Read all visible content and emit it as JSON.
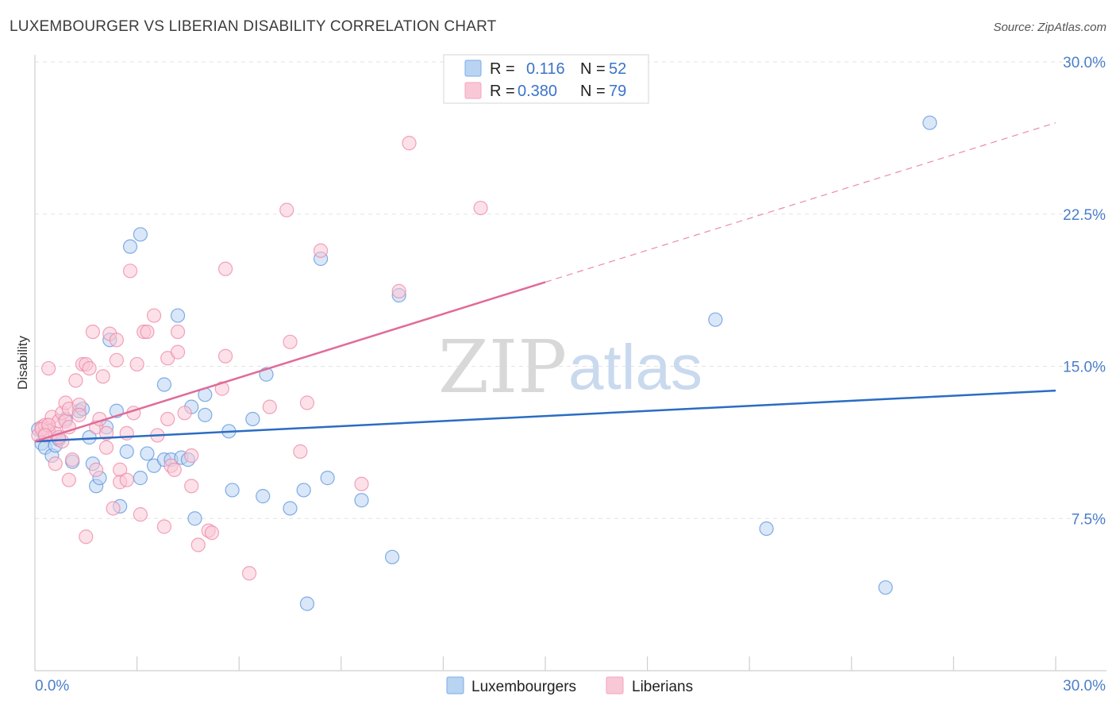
{
  "title": "LUXEMBOURGER VS LIBERIAN DISABILITY CORRELATION CHART",
  "source": "Source: ZipAtlas.com",
  "watermark": {
    "zip": "ZIP",
    "atlas": "atlas"
  },
  "legend": {
    "r_label": "R =",
    "n_label": "N =",
    "rows": [
      {
        "r": "0.116",
        "n": "52",
        "color": "#7aaee8"
      },
      {
        "r": "0.380",
        "n": "79",
        "color": "#f4a3bc"
      }
    ]
  },
  "chart_data": {
    "type": "scatter",
    "title": "LUXEMBOURGER VS LIBERIAN DISABILITY CORRELATION CHART",
    "xlabel": "",
    "ylabel": "Disability",
    "xlim": [
      0,
      30
    ],
    "ylim": [
      0,
      30
    ],
    "x_tick_labels": [
      {
        "value": 0,
        "label": "0.0%"
      },
      {
        "value": 30,
        "label": "30.0%"
      }
    ],
    "y_tick_labels": [
      {
        "value": 7.5,
        "label": "7.5%"
      },
      {
        "value": 15,
        "label": "15.0%"
      },
      {
        "value": 22.5,
        "label": "22.5%"
      },
      {
        "value": 30,
        "label": "30.0%"
      }
    ],
    "grid": true,
    "legend_position": "bottom",
    "series": [
      {
        "name": "Luxembourgers",
        "color": "#5b93dc",
        "fill": "#b9d3f2",
        "trend": {
          "x0": 0,
          "y0": 11.3,
          "x1": 30,
          "y1": 13.8,
          "solid_to": 30
        },
        "points": [
          [
            0.1,
            11.9
          ],
          [
            0.2,
            11.2
          ],
          [
            0.3,
            11.0
          ],
          [
            0.4,
            11.8
          ],
          [
            0.5,
            10.6
          ],
          [
            0.6,
            11.1
          ],
          [
            0.7,
            11.4
          ],
          [
            0.9,
            12.4
          ],
          [
            1.1,
            10.3
          ],
          [
            1.3,
            12.8
          ],
          [
            1.4,
            12.9
          ],
          [
            1.6,
            11.5
          ],
          [
            1.7,
            10.2
          ],
          [
            1.8,
            9.1
          ],
          [
            1.9,
            9.5
          ],
          [
            2.1,
            12.0
          ],
          [
            2.2,
            16.3
          ],
          [
            2.4,
            12.8
          ],
          [
            2.5,
            8.1
          ],
          [
            2.7,
            10.8
          ],
          [
            2.8,
            20.9
          ],
          [
            3.1,
            21.5
          ],
          [
            3.1,
            9.5
          ],
          [
            3.3,
            10.7
          ],
          [
            3.5,
            10.1
          ],
          [
            3.8,
            10.4
          ],
          [
            3.8,
            14.1
          ],
          [
            4.0,
            10.4
          ],
          [
            4.2,
            17.5
          ],
          [
            4.3,
            10.5
          ],
          [
            4.5,
            10.4
          ],
          [
            4.6,
            13.0
          ],
          [
            4.7,
            7.5
          ],
          [
            5.0,
            12.6
          ],
          [
            5.0,
            13.6
          ],
          [
            5.7,
            11.8
          ],
          [
            5.8,
            8.9
          ],
          [
            6.4,
            12.4
          ],
          [
            6.7,
            8.6
          ],
          [
            6.8,
            14.6
          ],
          [
            7.5,
            8.0
          ],
          [
            7.9,
            8.9
          ],
          [
            8.0,
            3.3
          ],
          [
            8.4,
            20.3
          ],
          [
            8.6,
            9.5
          ],
          [
            9.6,
            8.4
          ],
          [
            10.5,
            5.6
          ],
          [
            10.7,
            18.5
          ],
          [
            20.0,
            17.3
          ],
          [
            21.5,
            7.0
          ],
          [
            25.0,
            4.1
          ],
          [
            26.3,
            27.0
          ]
        ]
      },
      {
        "name": "Liberians",
        "color": "#ee86a5",
        "fill": "#f9c8d6",
        "trend": {
          "x0": 0,
          "y0": 11.3,
          "x1": 30,
          "y1": 27.0,
          "solid_to": 15.0
        },
        "points": [
          [
            0.1,
            11.6
          ],
          [
            0.2,
            12.0
          ],
          [
            0.3,
            11.7
          ],
          [
            0.3,
            12.1
          ],
          [
            0.4,
            14.9
          ],
          [
            0.4,
            11.8
          ],
          [
            0.5,
            12.5
          ],
          [
            0.6,
            10.2
          ],
          [
            0.6,
            11.7
          ],
          [
            0.7,
            12.3
          ],
          [
            0.8,
            11.3
          ],
          [
            0.8,
            12.7
          ],
          [
            0.9,
            13.2
          ],
          [
            0.9,
            12.3
          ],
          [
            1.0,
            9.4
          ],
          [
            1.0,
            12.9
          ],
          [
            1.1,
            10.4
          ],
          [
            1.2,
            14.3
          ],
          [
            1.3,
            13.1
          ],
          [
            1.3,
            12.6
          ],
          [
            1.4,
            15.1
          ],
          [
            1.5,
            15.1
          ],
          [
            1.5,
            6.6
          ],
          [
            1.6,
            14.9
          ],
          [
            1.7,
            16.7
          ],
          [
            1.8,
            12.0
          ],
          [
            1.9,
            12.4
          ],
          [
            2.0,
            14.5
          ],
          [
            2.1,
            11.0
          ],
          [
            2.1,
            11.7
          ],
          [
            2.2,
            16.6
          ],
          [
            2.3,
            8.0
          ],
          [
            2.4,
            16.3
          ],
          [
            2.4,
            15.3
          ],
          [
            2.5,
            9.9
          ],
          [
            2.5,
            9.3
          ],
          [
            2.7,
            11.7
          ],
          [
            2.8,
            19.7
          ],
          [
            2.9,
            12.7
          ],
          [
            3.0,
            15.1
          ],
          [
            3.1,
            7.7
          ],
          [
            3.2,
            16.7
          ],
          [
            3.3,
            16.7
          ],
          [
            3.5,
            17.5
          ],
          [
            3.6,
            11.6
          ],
          [
            3.8,
            7.1
          ],
          [
            3.9,
            12.4
          ],
          [
            3.9,
            15.4
          ],
          [
            4.0,
            10.1
          ],
          [
            4.1,
            9.9
          ],
          [
            4.2,
            15.7
          ],
          [
            4.2,
            16.7
          ],
          [
            4.4,
            12.7
          ],
          [
            4.6,
            9.1
          ],
          [
            4.8,
            6.2
          ],
          [
            5.1,
            6.9
          ],
          [
            5.2,
            6.8
          ],
          [
            5.5,
            13.9
          ],
          [
            5.6,
            19.8
          ],
          [
            5.6,
            15.5
          ],
          [
            6.3,
            4.8
          ],
          [
            6.9,
            13.0
          ],
          [
            7.4,
            22.7
          ],
          [
            7.5,
            16.2
          ],
          [
            7.8,
            10.8
          ],
          [
            8.0,
            13.2
          ],
          [
            8.4,
            20.7
          ],
          [
            9.6,
            9.2
          ],
          [
            10.7,
            18.7
          ],
          [
            11.0,
            26.0
          ],
          [
            13.1,
            22.8
          ],
          [
            0.2,
            11.9
          ],
          [
            0.4,
            12.1
          ],
          [
            0.7,
            11.5
          ],
          [
            1.0,
            12.0
          ],
          [
            1.8,
            9.9
          ],
          [
            2.7,
            9.4
          ],
          [
            4.6,
            10.6
          ],
          [
            0.3,
            11.6
          ]
        ]
      }
    ]
  }
}
